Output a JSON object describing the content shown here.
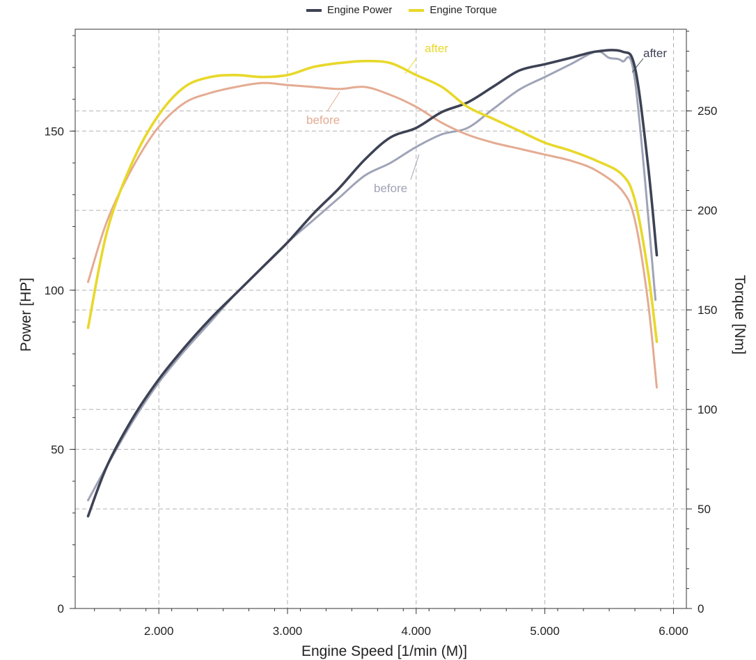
{
  "legend": {
    "power_label": "Engine Power",
    "torque_label": "Engine Torque",
    "power_color": "#3d4254",
    "torque_color": "#e8d82a"
  },
  "annotations": {
    "torque_after": "after",
    "torque_before": "before",
    "power_before": "before",
    "power_after": "after"
  },
  "chart_data": {
    "type": "line",
    "title": "",
    "xlabel": "Engine Speed [1/min (M)]",
    "ylabel": "Power [HP]",
    "y2label": "Torque [Nm]",
    "xlim": [
      1350,
      6100
    ],
    "ylim": [
      0,
      182
    ],
    "y2lim": [
      0,
      291
    ],
    "xticks": [
      "2.000",
      "3.000",
      "4.000",
      "5.000",
      "6.000"
    ],
    "yticks": [
      "0",
      "50",
      "100",
      "150"
    ],
    "y2ticks": [
      "0",
      "50",
      "100",
      "150",
      "200",
      "250"
    ],
    "grid": true,
    "legend_position": "top-center",
    "series": [
      {
        "name": "Engine Power",
        "variant": "after",
        "axis": "left",
        "color": "#3d4254",
        "x": [
          1450,
          1600,
          1800,
          2000,
          2200,
          2400,
          2600,
          2800,
          3000,
          3200,
          3400,
          3600,
          3800,
          4000,
          4200,
          4400,
          4600,
          4800,
          5000,
          5200,
          5400,
          5600,
          5700,
          5800,
          5870
        ],
        "y": [
          29,
          45,
          60,
          72,
          82,
          91,
          99,
          107,
          115,
          124,
          132,
          141,
          148,
          151,
          156,
          159,
          164,
          169,
          171,
          173,
          175,
          175,
          170,
          140,
          111
        ]
      },
      {
        "name": "Engine Power",
        "variant": "before",
        "axis": "left",
        "color": "#9fa3b6",
        "x": [
          1450,
          1600,
          1800,
          2000,
          2200,
          2400,
          2600,
          2800,
          3000,
          3200,
          3400,
          3600,
          3800,
          4000,
          4200,
          4400,
          4600,
          4800,
          5000,
          5200,
          5400,
          5500,
          5600,
          5700,
          5860
        ],
        "y": [
          34,
          45,
          59,
          71,
          81,
          90,
          99,
          107,
          115,
          122,
          129,
          136,
          140,
          145,
          149,
          151,
          157,
          163,
          167,
          171,
          175,
          173,
          172,
          166,
          97
        ]
      },
      {
        "name": "Engine Torque",
        "variant": "after",
        "axis": "right",
        "color": "#e8d82a",
        "x": [
          1450,
          1600,
          1800,
          2000,
          2200,
          2400,
          2600,
          2800,
          3000,
          3200,
          3400,
          3600,
          3800,
          4000,
          4200,
          4400,
          4600,
          4800,
          5000,
          5200,
          5400,
          5600,
          5700,
          5800,
          5870
        ],
        "y": [
          141,
          190,
          225,
          248,
          262,
          267,
          268,
          267,
          268,
          272,
          274,
          275,
          274,
          268,
          262,
          252,
          246,
          240,
          234,
          230,
          225,
          218,
          205,
          170,
          134
        ]
      },
      {
        "name": "Engine Torque",
        "variant": "before",
        "axis": "right",
        "color": "#e4ab92",
        "x": [
          1450,
          1600,
          1800,
          2000,
          2200,
          2400,
          2600,
          2800,
          3000,
          3200,
          3400,
          3600,
          3800,
          4000,
          4200,
          4400,
          4600,
          4800,
          5000,
          5200,
          5400,
          5600,
          5700,
          5800,
          5870
        ],
        "y": [
          164,
          195,
          222,
          242,
          254,
          259,
          262,
          264,
          263,
          262,
          261,
          262,
          258,
          252,
          244,
          238,
          234,
          231,
          228,
          225,
          220,
          210,
          195,
          155,
          111
        ]
      }
    ]
  }
}
